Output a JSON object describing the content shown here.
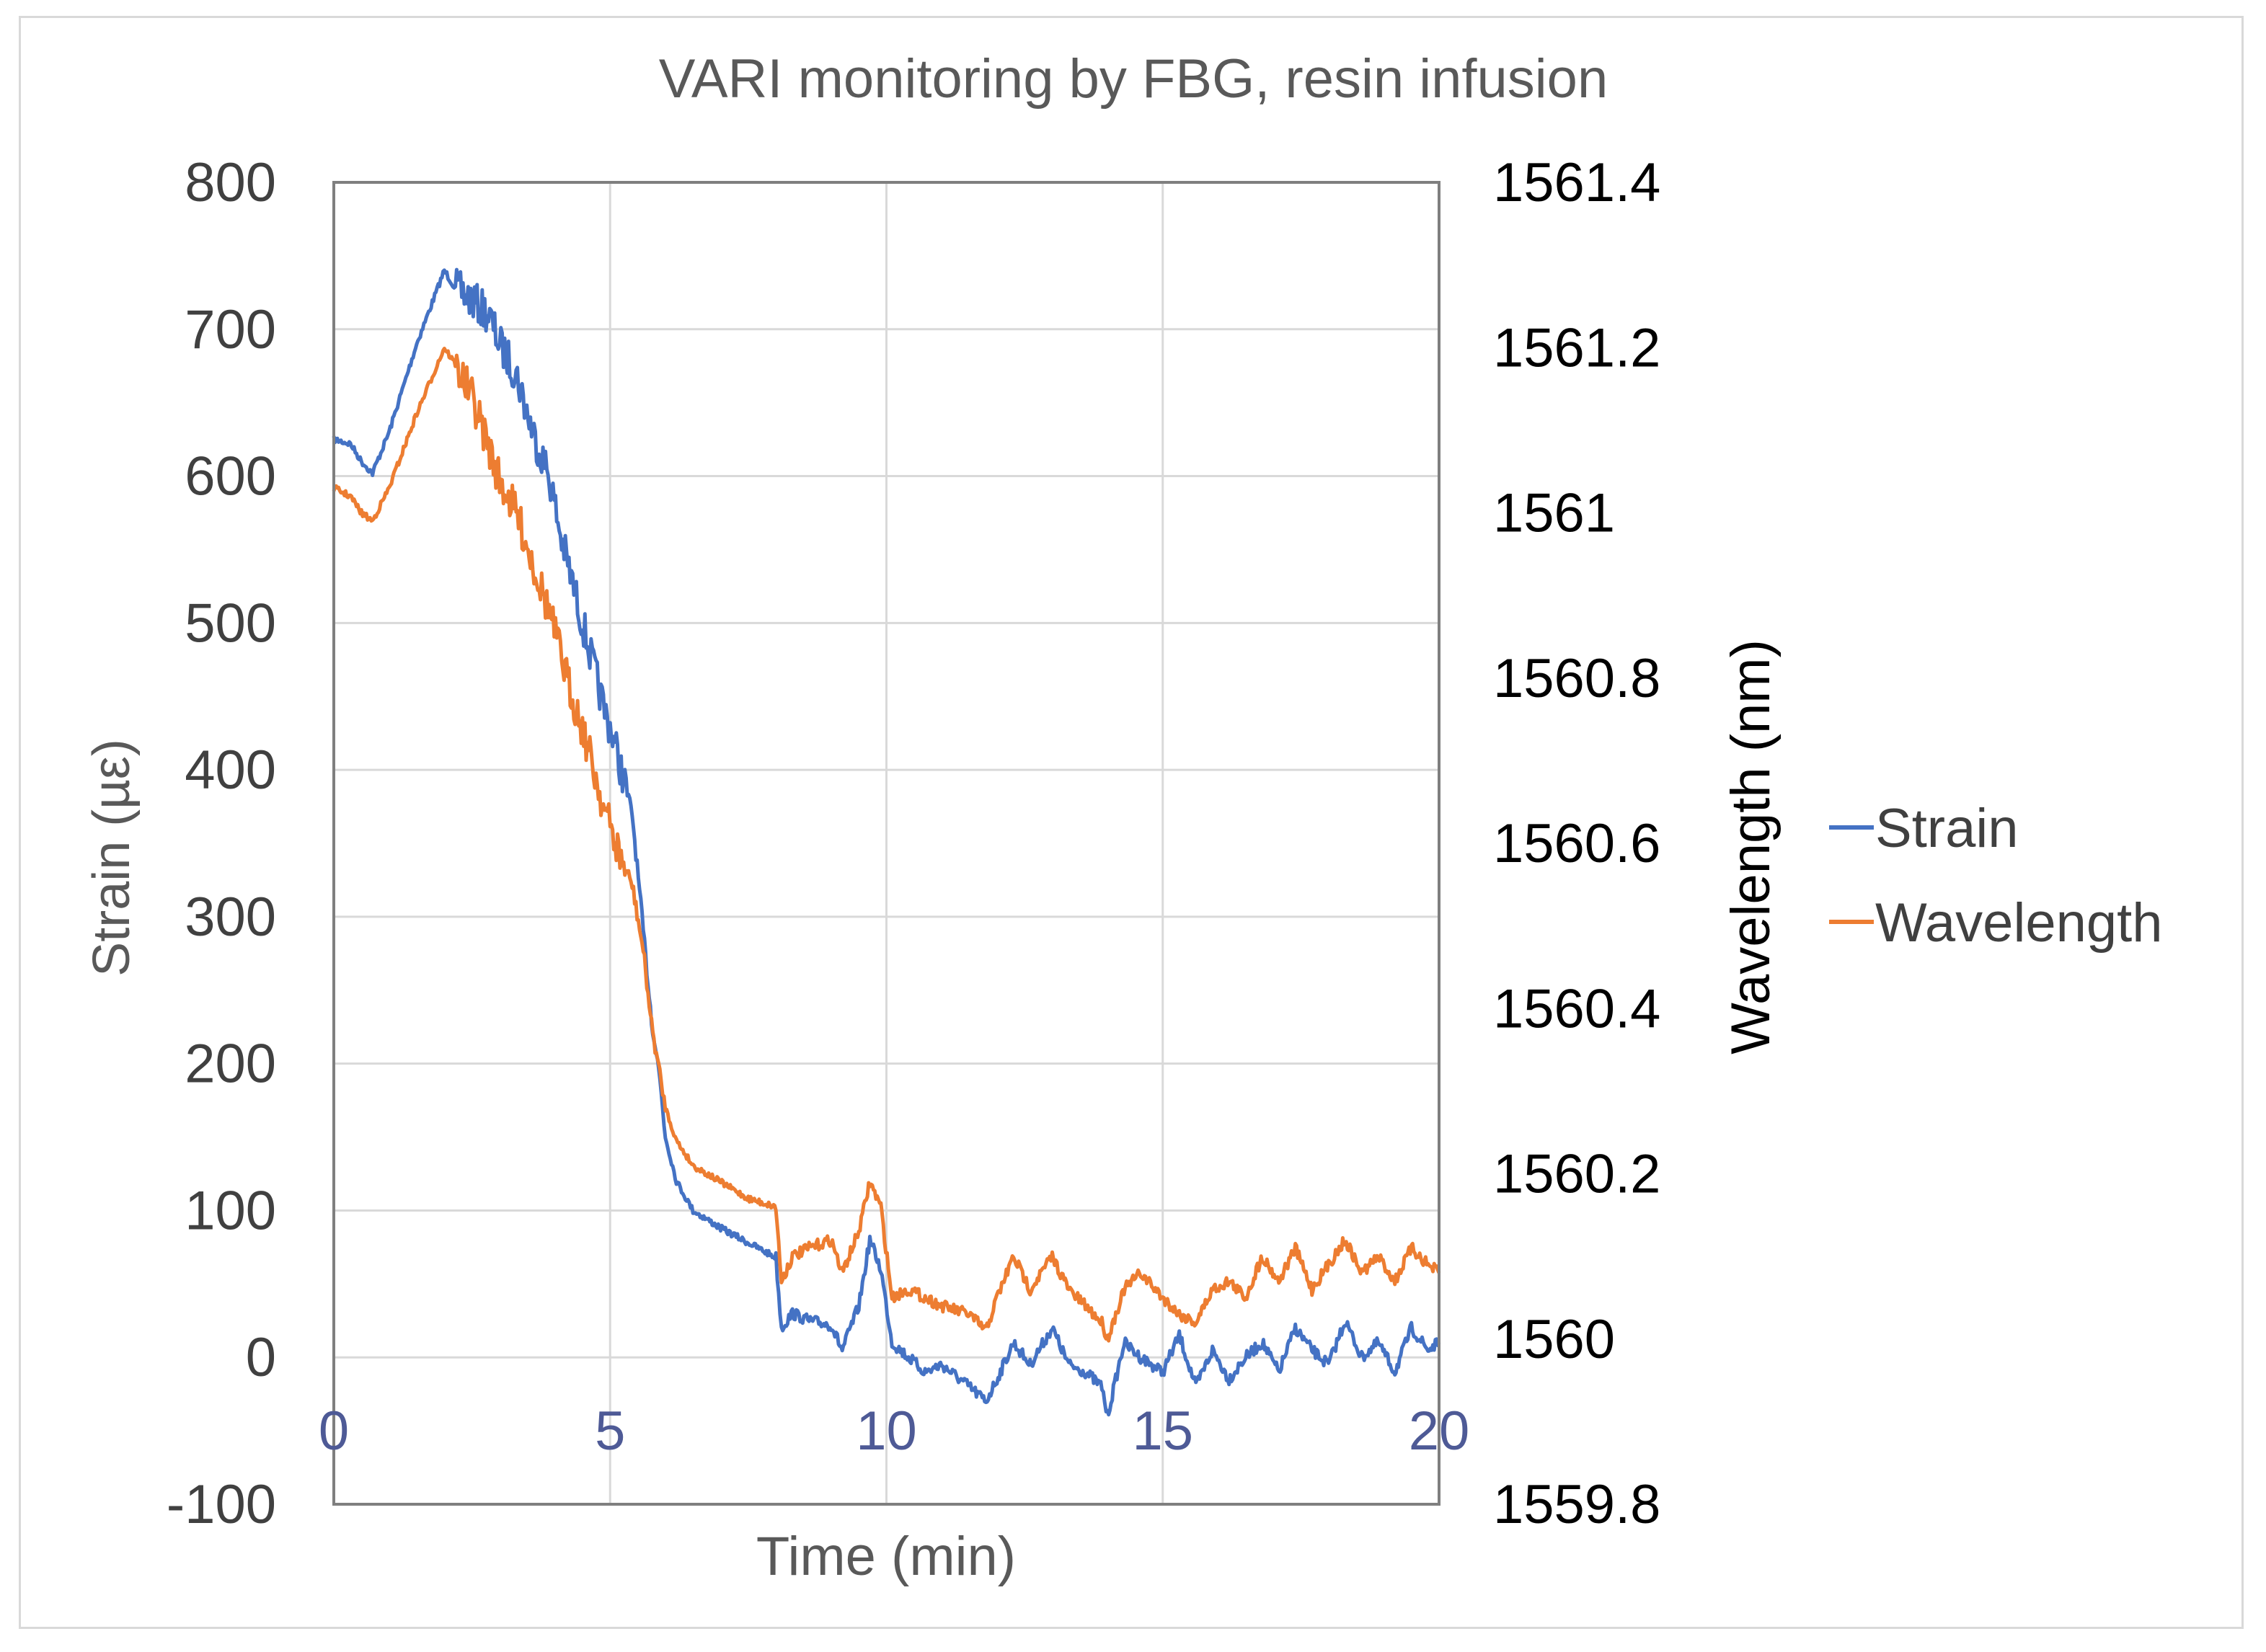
{
  "chart_data": {
    "type": "line",
    "title": "VARI monitoring by FBG, resin infusion",
    "xlabel": "Time (min)",
    "ylabel": "Strain (µε)",
    "y2label": "Wavelength (nm)",
    "xlim": [
      0,
      20
    ],
    "ylim": [
      -100,
      800
    ],
    "y2lim": [
      1559.8,
      1561.4
    ],
    "x_ticks": [
      "0",
      "5",
      "10",
      "15",
      "20"
    ],
    "x_tick_values": [
      0,
      5,
      10,
      15,
      20
    ],
    "y_ticks": [
      "800",
      "700",
      "600",
      "500",
      "400",
      "300",
      "200",
      "100",
      "0",
      "-100"
    ],
    "y_tick_values": [
      800,
      700,
      600,
      500,
      400,
      300,
      200,
      100,
      0,
      -100
    ],
    "y2_ticks": [
      "1561.4",
      "1561.2",
      "1561",
      "1560.8",
      "1560.6",
      "1560.4",
      "1560.2",
      "1560",
      "1559.8"
    ],
    "y2_tick_values": [
      1561.4,
      1561.2,
      1561.0,
      1560.8,
      1560.6,
      1560.4,
      1560.2,
      1560.0,
      1559.8
    ],
    "grid": true,
    "legend_position": "right",
    "series": [
      {
        "name": "Strain",
        "axis": "left",
        "color": "#4472c4",
        "x": [
          0,
          0.3,
          0.5,
          0.7,
          1.0,
          1.5,
          2.0,
          2.2,
          2.5,
          2.8,
          3.0,
          3.3,
          3.6,
          3.9,
          4.1,
          4.3,
          4.5,
          4.7,
          4.9,
          5.0,
          5.2,
          5.4,
          5.6,
          5.75,
          5.9,
          6.0,
          6.2,
          6.5,
          7.0,
          7.5,
          8.0,
          8.1,
          8.3,
          8.6,
          9.0,
          9.2,
          9.5,
          9.7,
          9.9,
          10.1,
          10.4,
          10.7,
          11.0,
          11.5,
          11.8,
          12.0,
          12.3,
          12.6,
          13.0,
          13.3,
          13.6,
          13.9,
          14.0,
          14.3,
          14.6,
          15.0,
          15.3,
          15.6,
          15.9,
          16.2,
          16.5,
          16.8,
          17.1,
          17.4,
          17.7,
          18.0,
          18.3,
          18.6,
          18.9,
          19.2,
          19.5,
          19.8,
          20.0
        ],
        "values": [
          625,
          622,
          610,
          602,
          630,
          690,
          740,
          728,
          720,
          710,
          690,
          670,
          630,
          600,
          560,
          530,
          500,
          470,
          440,
          430,
          400,
          370,
          290,
          230,
          190,
          150,
          120,
          100,
          88,
          78,
          68,
          20,
          30,
          25,
          22,
          5,
          35,
          80,
          60,
          10,
          0,
          -10,
          -5,
          -20,
          -30,
          -15,
          10,
          -5,
          20,
          -5,
          -10,
          -20,
          -40,
          10,
          0,
          -10,
          15,
          -20,
          5,
          -15,
          0,
          10,
          -10,
          20,
          5,
          -5,
          25,
          0,
          10,
          -10,
          20,
          5,
          10
        ]
      },
      {
        "name": "Wavelength",
        "axis": "right",
        "color": "#ed7d31",
        "x": [
          0,
          0.3,
          0.5,
          0.7,
          1.0,
          1.5,
          2.0,
          2.2,
          2.5,
          2.8,
          3.0,
          3.3,
          3.6,
          3.9,
          4.1,
          4.3,
          4.5,
          4.7,
          4.9,
          5.0,
          5.2,
          5.4,
          5.6,
          5.75,
          5.9,
          6.0,
          6.2,
          6.5,
          7.0,
          7.5,
          8.0,
          8.1,
          8.3,
          8.6,
          9.0,
          9.2,
          9.5,
          9.7,
          9.9,
          10.1,
          10.4,
          10.7,
          11.0,
          11.5,
          11.8,
          12.0,
          12.3,
          12.6,
          13.0,
          13.3,
          13.6,
          13.9,
          14.0,
          14.3,
          14.6,
          15.0,
          15.3,
          15.6,
          15.9,
          16.2,
          16.5,
          16.8,
          17.1,
          17.4,
          17.7,
          18.0,
          18.3,
          18.6,
          18.9,
          19.2,
          19.5,
          19.8,
          20.0
        ],
        "values": [
          1561.03,
          1561.02,
          1561.0,
          1560.99,
          1561.03,
          1561.12,
          1561.2,
          1561.18,
          1561.14,
          1561.08,
          1561.04,
          1561.0,
          1560.94,
          1560.88,
          1560.83,
          1560.78,
          1560.74,
          1560.69,
          1560.64,
          1560.62,
          1560.58,
          1560.55,
          1560.47,
          1560.38,
          1560.32,
          1560.28,
          1560.24,
          1560.21,
          1560.19,
          1560.17,
          1560.16,
          1560.07,
          1560.1,
          1560.11,
          1560.12,
          1560.08,
          1560.13,
          1560.19,
          1560.16,
          1560.05,
          1560.06,
          1560.05,
          1560.04,
          1560.03,
          1560.01,
          1560.05,
          1560.1,
          1560.06,
          1560.1,
          1560.06,
          1560.04,
          1560.02,
          1560.0,
          1560.06,
          1560.08,
          1560.05,
          1560.03,
          1560.02,
          1560.06,
          1560.07,
          1560.05,
          1560.1,
          1560.07,
          1560.11,
          1560.06,
          1560.09,
          1560.12,
          1560.08,
          1560.1,
          1560.07,
          1560.11,
          1560.09,
          1560.08
        ]
      }
    ]
  }
}
